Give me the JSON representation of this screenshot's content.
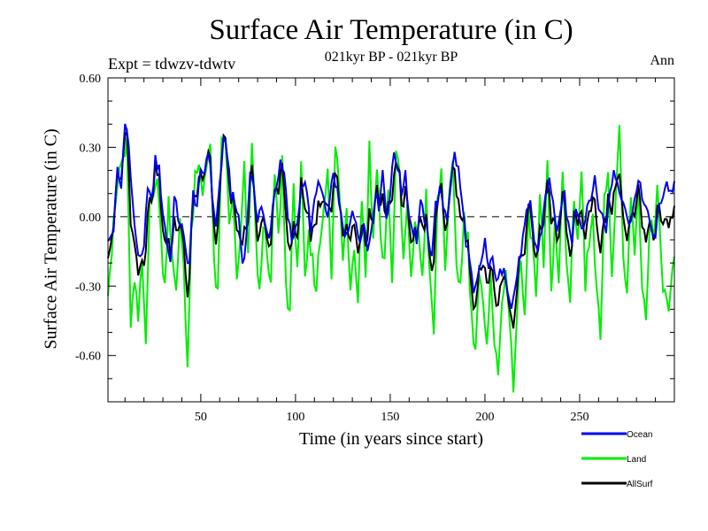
{
  "chart_data": {
    "type": "line",
    "title": "Surface Air Temperature (in C)",
    "subtitle": "021kyr BP - 021kyr BP",
    "experiment": "Expt = tdwzv-tdwtv",
    "period": "Ann",
    "xlabel": "Time (in years since start)",
    "ylabel": "Surface Air Temperature (in C)",
    "xlim": [
      1,
      300
    ],
    "ylim": [
      -0.8,
      0.6
    ],
    "xticks": [
      50,
      100,
      150,
      200,
      250
    ],
    "xtick_labels": [
      "50",
      "100",
      "150",
      "200",
      "250"
    ],
    "yticks": [
      0.6,
      0.3,
      0.0,
      -0.3,
      -0.6
    ],
    "ytick_labels": [
      "0.60",
      "0.30",
      "0.00",
      "-0.30",
      "-0.60"
    ],
    "zero_line": "dashed",
    "legend": [
      {
        "name": "Ocean",
        "color": "#0000ee"
      },
      {
        "name": "Land",
        "color": "#00ee00"
      },
      {
        "name": "AllSurf",
        "color": "#000000"
      }
    ],
    "anchors": {
      "Ocean": [
        [
          1,
          -0.12
        ],
        [
          4,
          -0.05
        ],
        [
          6,
          0.2
        ],
        [
          8,
          0.12
        ],
        [
          10,
          0.43
        ],
        [
          12,
          0.3
        ],
        [
          14,
          0.05
        ],
        [
          16,
          -0.1
        ],
        [
          18,
          -0.2
        ],
        [
          20,
          -0.15
        ],
        [
          22,
          0.15
        ],
        [
          24,
          0.05
        ],
        [
          26,
          0.25
        ],
        [
          28,
          0.2
        ],
        [
          30,
          0.02
        ],
        [
          32,
          -0.1
        ],
        [
          34,
          -0.2
        ],
        [
          36,
          0.08
        ],
        [
          38,
          0.0
        ],
        [
          40,
          -0.05
        ],
        [
          42,
          -0.15
        ],
        [
          44,
          -0.2
        ],
        [
          46,
          0.1
        ],
        [
          48,
          0.05
        ],
        [
          50,
          0.18
        ],
        [
          52,
          0.2
        ],
        [
          54,
          0.3
        ],
        [
          56,
          0.1
        ],
        [
          58,
          -0.05
        ],
        [
          60,
          0.15
        ],
        [
          62,
          0.32
        ],
        [
          64,
          0.28
        ],
        [
          66,
          0.1
        ],
        [
          68,
          0.05
        ],
        [
          70,
          0.0
        ],
        [
          72,
          -0.2
        ],
        [
          74,
          -0.1
        ],
        [
          76,
          0.2
        ],
        [
          78,
          0.1
        ],
        [
          80,
          0.0
        ],
        [
          82,
          0.05
        ],
        [
          84,
          -0.05
        ],
        [
          86,
          -0.1
        ],
        [
          88,
          0.05
        ],
        [
          90,
          0.15
        ],
        [
          92,
          0.22
        ],
        [
          94,
          0.18
        ],
        [
          96,
          0.0
        ],
        [
          98,
          -0.1
        ],
        [
          100,
          -0.05
        ],
        [
          102,
          0.05
        ],
        [
          104,
          0.15
        ],
        [
          106,
          0.1
        ],
        [
          108,
          -0.05
        ],
        [
          110,
          0.05
        ],
        [
          112,
          0.15
        ],
        [
          114,
          0.1
        ],
        [
          116,
          0.0
        ],
        [
          118,
          0.05
        ],
        [
          120,
          0.2
        ],
        [
          122,
          0.1
        ],
        [
          124,
          0.0
        ],
        [
          126,
          -0.1
        ],
        [
          128,
          -0.05
        ],
        [
          130,
          0.05
        ],
        [
          132,
          -0.05
        ],
        [
          134,
          -0.1
        ],
        [
          136,
          0.0
        ],
        [
          138,
          -0.15
        ],
        [
          140,
          -0.05
        ],
        [
          142,
          0.1
        ],
        [
          144,
          0.05
        ],
        [
          146,
          0.2
        ],
        [
          148,
          0.0
        ],
        [
          150,
          0.1
        ],
        [
          152,
          0.28
        ],
        [
          154,
          0.22
        ],
        [
          156,
          0.1
        ],
        [
          158,
          0.2
        ],
        [
          160,
          0.0
        ],
        [
          162,
          -0.05
        ],
        [
          164,
          -0.1
        ],
        [
          166,
          0.05
        ],
        [
          168,
          0.0
        ],
        [
          170,
          -0.1
        ],
        [
          172,
          -0.15
        ],
        [
          174,
          0.05
        ],
        [
          176,
          0.1
        ],
        [
          178,
          0.05
        ],
        [
          180,
          0.0
        ],
        [
          182,
          0.15
        ],
        [
          184,
          0.27
        ],
        [
          186,
          0.2
        ],
        [
          188,
          0.05
        ],
        [
          190,
          -0.1
        ],
        [
          192,
          -0.2
        ],
        [
          194,
          -0.35
        ],
        [
          196,
          -0.28
        ],
        [
          198,
          -0.2
        ],
        [
          200,
          -0.1
        ],
        [
          202,
          -0.25
        ],
        [
          204,
          -0.15
        ],
        [
          206,
          -0.3
        ],
        [
          208,
          -0.25
        ],
        [
          210,
          -0.2
        ],
        [
          212,
          -0.3
        ],
        [
          214,
          -0.4
        ],
        [
          216,
          -0.3
        ],
        [
          218,
          -0.2
        ],
        [
          220,
          -0.1
        ],
        [
          222,
          0.0
        ],
        [
          224,
          0.05
        ],
        [
          226,
          -0.1
        ],
        [
          228,
          -0.15
        ],
        [
          230,
          -0.05
        ],
        [
          232,
          0.1
        ],
        [
          234,
          0.15
        ],
        [
          236,
          0.05
        ],
        [
          238,
          -0.05
        ],
        [
          240,
          0.0
        ],
        [
          242,
          0.1
        ],
        [
          244,
          -0.05
        ],
        [
          246,
          -0.1
        ],
        [
          248,
          0.05
        ],
        [
          250,
          0.0
        ],
        [
          252,
          -0.05
        ],
        [
          254,
          0.05
        ],
        [
          256,
          0.1
        ],
        [
          258,
          0.15
        ],
        [
          260,
          0.05
        ],
        [
          262,
          0.0
        ],
        [
          264,
          -0.05
        ],
        [
          266,
          0.1
        ],
        [
          268,
          0.2
        ],
        [
          270,
          0.15
        ],
        [
          272,
          0.1
        ],
        [
          274,
          0.05
        ],
        [
          276,
          -0.05
        ],
        [
          278,
          0.05
        ],
        [
          280,
          0.1
        ],
        [
          282,
          0.15
        ],
        [
          284,
          0.05
        ],
        [
          286,
          0.0
        ],
        [
          288,
          -0.05
        ],
        [
          290,
          -0.1
        ],
        [
          292,
          0.05
        ],
        [
          294,
          0.1
        ],
        [
          296,
          0.15
        ],
        [
          298,
          0.1
        ],
        [
          300,
          0.15
        ]
      ],
      "Land": [
        [
          1,
          -0.3
        ],
        [
          3,
          -0.15
        ],
        [
          5,
          0.05
        ],
        [
          7,
          0.2
        ],
        [
          9,
          0.25
        ],
        [
          11,
          0.3
        ],
        [
          13,
          -0.45
        ],
        [
          15,
          -0.3
        ],
        [
          17,
          -0.45
        ],
        [
          19,
          -0.2
        ],
        [
          21,
          -0.55
        ],
        [
          23,
          0.1
        ],
        [
          25,
          0.05
        ],
        [
          27,
          0.2
        ],
        [
          29,
          -0.1
        ],
        [
          31,
          -0.3
        ],
        [
          33,
          0.1
        ],
        [
          35,
          -0.2
        ],
        [
          37,
          -0.35
        ],
        [
          39,
          0.0
        ],
        [
          41,
          -0.2
        ],
        [
          43,
          -0.65
        ],
        [
          45,
          -0.1
        ],
        [
          47,
          0.15
        ],
        [
          49,
          0.2
        ],
        [
          51,
          0.1
        ],
        [
          53,
          0.25
        ],
        [
          55,
          0.3
        ],
        [
          57,
          -0.2
        ],
        [
          59,
          -0.35
        ],
        [
          61,
          0.3
        ],
        [
          63,
          0.35
        ],
        [
          65,
          -0.05
        ],
        [
          67,
          0.1
        ],
        [
          69,
          -0.3
        ],
        [
          71,
          -0.1
        ],
        [
          73,
          0.2
        ],
        [
          75,
          -0.2
        ],
        [
          77,
          0.35
        ],
        [
          79,
          -0.1
        ],
        [
          81,
          -0.35
        ],
        [
          83,
          0.0
        ],
        [
          85,
          -0.2
        ],
        [
          87,
          -0.3
        ],
        [
          89,
          0.2
        ],
        [
          91,
          -0.1
        ],
        [
          93,
          0.25
        ],
        [
          95,
          -0.3
        ],
        [
          97,
          -0.4
        ],
        [
          99,
          0.1
        ],
        [
          101,
          -0.2
        ],
        [
          103,
          0.2
        ],
        [
          105,
          -0.3
        ],
        [
          107,
          -0.1
        ],
        [
          109,
          -0.2
        ],
        [
          111,
          -0.3
        ],
        [
          113,
          -0.1
        ],
        [
          115,
          0.05
        ],
        [
          117,
          0.25
        ],
        [
          119,
          -0.3
        ],
        [
          121,
          0.3
        ],
        [
          123,
          0.15
        ],
        [
          125,
          -0.2
        ],
        [
          127,
          0.05
        ],
        [
          129,
          -0.3
        ],
        [
          131,
          -0.1
        ],
        [
          133,
          -0.35
        ],
        [
          135,
          0.1
        ],
        [
          137,
          -0.25
        ],
        [
          139,
          0.3
        ],
        [
          141,
          -0.1
        ],
        [
          143,
          0.25
        ],
        [
          145,
          -0.1
        ],
        [
          147,
          -0.2
        ],
        [
          149,
          0.15
        ],
        [
          151,
          -0.3
        ],
        [
          153,
          0.3
        ],
        [
          155,
          0.15
        ],
        [
          157,
          -0.2
        ],
        [
          159,
          0.05
        ],
        [
          161,
          -0.3
        ],
        [
          163,
          0.0
        ],
        [
          165,
          -0.1
        ],
        [
          167,
          -0.25
        ],
        [
          169,
          0.1
        ],
        [
          171,
          -0.3
        ],
        [
          173,
          -0.5
        ],
        [
          175,
          0.05
        ],
        [
          177,
          0.2
        ],
        [
          179,
          -0.2
        ],
        [
          181,
          0.05
        ],
        [
          183,
          0.2
        ],
        [
          185,
          -0.2
        ],
        [
          187,
          -0.3
        ],
        [
          189,
          0.0
        ],
        [
          191,
          -0.1
        ],
        [
          193,
          -0.45
        ],
        [
          195,
          -0.55
        ],
        [
          197,
          -0.25
        ],
        [
          199,
          -0.4
        ],
        [
          201,
          -0.6
        ],
        [
          203,
          -0.2
        ],
        [
          205,
          -0.55
        ],
        [
          207,
          -0.7
        ],
        [
          209,
          -0.35
        ],
        [
          211,
          -0.2
        ],
        [
          213,
          -0.5
        ],
        [
          215,
          -0.72
        ],
        [
          217,
          -0.4
        ],
        [
          219,
          -0.2
        ],
        [
          221,
          -0.45
        ],
        [
          223,
          0.0
        ],
        [
          225,
          -0.1
        ],
        [
          227,
          -0.35
        ],
        [
          229,
          0.05
        ],
        [
          231,
          -0.2
        ],
        [
          233,
          0.2
        ],
        [
          235,
          -0.3
        ],
        [
          237,
          0.0
        ],
        [
          239,
          -0.3
        ],
        [
          241,
          0.2
        ],
        [
          243,
          -0.2
        ],
        [
          245,
          -0.35
        ],
        [
          247,
          0.1
        ],
        [
          249,
          -0.1
        ],
        [
          251,
          0.2
        ],
        [
          253,
          -0.3
        ],
        [
          255,
          -0.1
        ],
        [
          257,
          0.05
        ],
        [
          259,
          -0.35
        ],
        [
          261,
          -0.5
        ],
        [
          263,
          0.1
        ],
        [
          265,
          0.2
        ],
        [
          267,
          -0.3
        ],
        [
          269,
          0.1
        ],
        [
          271,
          0.35
        ],
        [
          273,
          -0.2
        ],
        [
          275,
          -0.35
        ],
        [
          277,
          0.1
        ],
        [
          279,
          -0.2
        ],
        [
          281,
          0.15
        ],
        [
          283,
          -0.3
        ],
        [
          285,
          -0.45
        ],
        [
          287,
          0.0
        ],
        [
          289,
          -0.1
        ],
        [
          291,
          0.1
        ],
        [
          293,
          -0.2
        ],
        [
          295,
          -0.35
        ],
        [
          297,
          -0.4
        ],
        [
          299,
          -0.25
        ],
        [
          300,
          -0.2
        ]
      ]
    }
  }
}
